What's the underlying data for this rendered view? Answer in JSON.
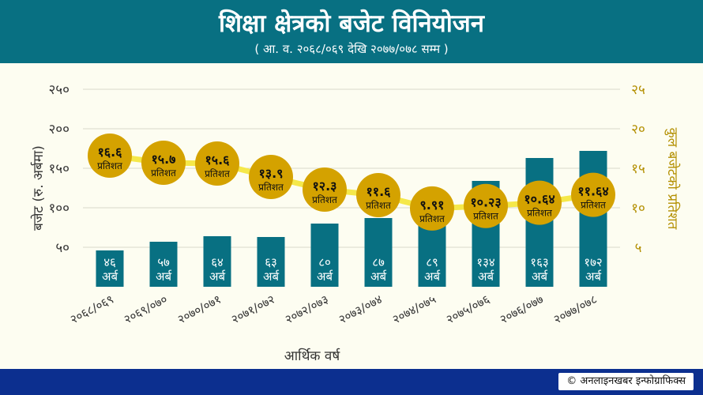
{
  "header": {
    "title": "शिक्षा क्षेत्रको बजेट विनियोजन",
    "subtitle": "( आ. व. २०६८/०६९ देखि २०७७/०७८ सम्म )"
  },
  "footer": {
    "credit": "© अनलाइनखबर इन्फोग्राफिक्स"
  },
  "colors": {
    "header_bg": "#087082",
    "bar": "#087082",
    "line": "#f5e84a",
    "circle": "#d4a200",
    "footer_bg": "#0c2f8f",
    "right_axis_text": "#b38f00"
  },
  "chart_data": {
    "type": "bar",
    "categories": [
      "२०६८/०६९",
      "२०६९/०७०",
      "२०७०/०७१",
      "२०७१/०७२",
      "२०७२/०७३",
      "२०७३/०७४",
      "२०७४/०७५",
      "२०७५/०७६",
      "२०७६/०७७",
      "२०७७/०७८"
    ],
    "series": [
      {
        "values": [
          46,
          57,
          64,
          63,
          80,
          87,
          89,
          134,
          163,
          172
        ],
        "labels": [
          "४६",
          "५७",
          "६४",
          "६३",
          "८०",
          "८७",
          "८९",
          "१३४",
          "१६३",
          "१७२"
        ],
        "unit_label": "अर्ब"
      },
      {
        "values": [
          16.6,
          15.7,
          15.6,
          13.9,
          12.3,
          11.6,
          9.91,
          10.23,
          10.64,
          11.64
        ],
        "labels": [
          "१६.६",
          "१५.७",
          "१५.६",
          "१३.९",
          "१२.३",
          "११.६",
          "९.९१",
          "१०.२३",
          "१०.६४",
          "११.६४"
        ],
        "unit_label": "प्रतिशत"
      }
    ],
    "xlabel": "आर्थिक वर्ष",
    "ylabel": "बजेट (रु. अर्बमा)",
    "y2label": "कुल बजेटको प्रतिशत",
    "ylim": [
      0,
      250
    ],
    "y2lim": [
      0,
      25
    ],
    "yticks": [
      50,
      100,
      150,
      200,
      250
    ],
    "ytick_labels": [
      "५०",
      "१००",
      "१५०",
      "२००",
      "२५०"
    ],
    "y2ticks": [
      5,
      10,
      15,
      20,
      25
    ],
    "y2tick_labels": [
      "५",
      "१०",
      "१५",
      "२०",
      "२५"
    ],
    "grid": true
  }
}
